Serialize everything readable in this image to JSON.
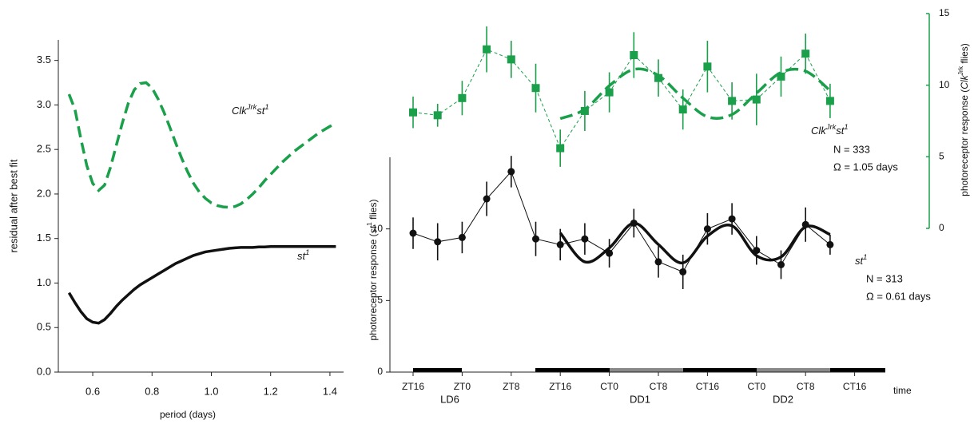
{
  "chart_data": [
    {
      "type": "line",
      "xlabel": "period (days)",
      "ylabel": "residual after best fit",
      "x": [
        0.52,
        0.54,
        0.56,
        0.58,
        0.6,
        0.62,
        0.64,
        0.66,
        0.68,
        0.7,
        0.72,
        0.74,
        0.76,
        0.78,
        0.8,
        0.82,
        0.84,
        0.86,
        0.88,
        0.9,
        0.92,
        0.94,
        0.96,
        0.98,
        1.0,
        1.02,
        1.04,
        1.06,
        1.08,
        1.1,
        1.12,
        1.14,
        1.16,
        1.18,
        1.2,
        1.22,
        1.24,
        1.26,
        1.28,
        1.3,
        1.32,
        1.34,
        1.36,
        1.38,
        1.4,
        1.42
      ],
      "series": [
        {
          "name": [
            {
              "text": "Clk"
            },
            {
              "text": "Jrk",
              "sup": true
            },
            {
              "text": "st"
            },
            {
              "text": "1",
              "sup": true
            }
          ],
          "color": "#1aa04a",
          "dashed": true,
          "values": [
            3.12,
            2.95,
            2.62,
            2.32,
            2.12,
            2.04,
            2.1,
            2.3,
            2.55,
            2.8,
            3.02,
            3.17,
            3.24,
            3.25,
            3.19,
            3.07,
            2.92,
            2.75,
            2.57,
            2.4,
            2.25,
            2.12,
            2.02,
            1.95,
            1.9,
            1.87,
            1.855,
            1.85,
            1.86,
            1.89,
            1.94,
            2.0,
            2.07,
            2.15,
            2.22,
            2.29,
            2.36,
            2.42,
            2.48,
            2.53,
            2.58,
            2.63,
            2.68,
            2.72,
            2.76,
            2.79
          ]
        },
        {
          "name": [
            {
              "text": "st"
            },
            {
              "text": "1",
              "sup": true
            }
          ],
          "color": "#111111",
          "dashed": false,
          "values": [
            0.89,
            0.78,
            0.68,
            0.6,
            0.56,
            0.55,
            0.59,
            0.66,
            0.74,
            0.81,
            0.87,
            0.93,
            0.98,
            1.02,
            1.06,
            1.1,
            1.14,
            1.18,
            1.22,
            1.25,
            1.28,
            1.31,
            1.33,
            1.35,
            1.36,
            1.37,
            1.38,
            1.39,
            1.395,
            1.4,
            1.4,
            1.4,
            1.405,
            1.405,
            1.41,
            1.41,
            1.41,
            1.41,
            1.41,
            1.41,
            1.41,
            1.41,
            1.41,
            1.41,
            1.41,
            1.41
          ]
        }
      ],
      "xlim": [
        0.484,
        1.446
      ],
      "xticks": [
        0.6,
        0.8,
        {
          "value": 1,
          "label": "1.0"
        },
        1.2,
        1.4
      ],
      "ylim": [
        0,
        3.73
      ],
      "yticks": [
        {
          "value": 0,
          "label": "0.0"
        },
        0.5,
        {
          "value": 1,
          "label": "1.0"
        },
        1.5,
        {
          "value": 2,
          "label": "2.0"
        },
        2.5,
        {
          "value": 3,
          "label": "3.0"
        },
        3.5
      ]
    },
    {
      "type": "errorline",
      "xlabel": "time",
      "ylabel": [
        {
          "text": "photoreceptor response ("
        },
        {
          "text": "st",
          "italic": true
        },
        {
          "text": "1",
          "sup": true
        },
        {
          "text": " flies)"
        }
      ],
      "y2label": [
        {
          "text": "photoreceptor response ("
        },
        {
          "text": "Clk",
          "italic": true
        },
        {
          "text": "Jrk",
          "sup": true
        },
        {
          "text": " flies)"
        }
      ],
      "groups": [
        "LD6",
        "DD1",
        "DD2"
      ],
      "categories": [
        "ZT16",
        null,
        "ZT0",
        null,
        "ZT8",
        null,
        "ZT16",
        null,
        "CT0",
        null,
        "CT8",
        null,
        "CT16",
        null,
        "CT0",
        null,
        "CT8",
        null,
        "CT16"
      ],
      "series": [
        {
          "name": [
            {
              "text": "Clk"
            },
            {
              "text": "Jrk",
              "sup": true
            },
            {
              "text": "st"
            },
            {
              "text": "1",
              "sup": true
            }
          ],
          "stats": [
            "N = 333",
            "Ω = 1.05 days"
          ],
          "color": "#1aa04a",
          "marker": "square",
          "dashed": true,
          "axis": "y2",
          "values": [
            8.1,
            7.9,
            9.1,
            12.5,
            11.8,
            9.8,
            5.6,
            8.2,
            9.5,
            12.1,
            10.5,
            8.3,
            11.3,
            8.9,
            9.0,
            10.6,
            12.2,
            8.9,
            null
          ],
          "errors": [
            1.1,
            0.8,
            1.2,
            1.6,
            1.3,
            1.7,
            1.3,
            1.4,
            1.4,
            1.6,
            1.3,
            1.4,
            1.8,
            1.3,
            1.8,
            1.4,
            1.4,
            1.2,
            null
          ],
          "fit": [
            null,
            null,
            null,
            null,
            null,
            null,
            7.66,
            8.31,
            9.96,
            11.1,
            10.68,
            9.1,
            7.79,
            7.95,
            9.44,
            10.89,
            10.98,
            9.62,
            null
          ]
        },
        {
          "name": [
            {
              "text": "st"
            },
            {
              "text": "1",
              "sup": true
            }
          ],
          "stats": [
            "N = 313",
            "Ω = 0.61 days"
          ],
          "color": "#111111",
          "marker": "circle",
          "dashed": false,
          "values": [
            9.7,
            9.1,
            9.4,
            12.1,
            14.0,
            9.3,
            8.9,
            9.3,
            8.3,
            10.4,
            7.7,
            7.0,
            10.0,
            10.7,
            8.5,
            7.5,
            10.3,
            8.9,
            null
          ],
          "errors": [
            1.1,
            1.3,
            1.1,
            1.2,
            1.1,
            1.2,
            1.1,
            1.1,
            1.0,
            1.0,
            1.1,
            1.2,
            1.1,
            1.1,
            1.0,
            1.0,
            1.2,
            0.7,
            null
          ],
          "fit": [
            null,
            null,
            null,
            null,
            null,
            null,
            9.72,
            7.7,
            8.67,
            10.4,
            8.91,
            7.63,
            9.5,
            10.22,
            8.13,
            8.04,
            10.15,
            9.61,
            null
          ]
        }
      ],
      "ylim": [
        0,
        15
      ],
      "yticks": [
        0,
        5,
        10
      ],
      "y2lim": [
        0,
        15
      ],
      "y2ticks": [
        0,
        5,
        10,
        15
      ]
    }
  ]
}
